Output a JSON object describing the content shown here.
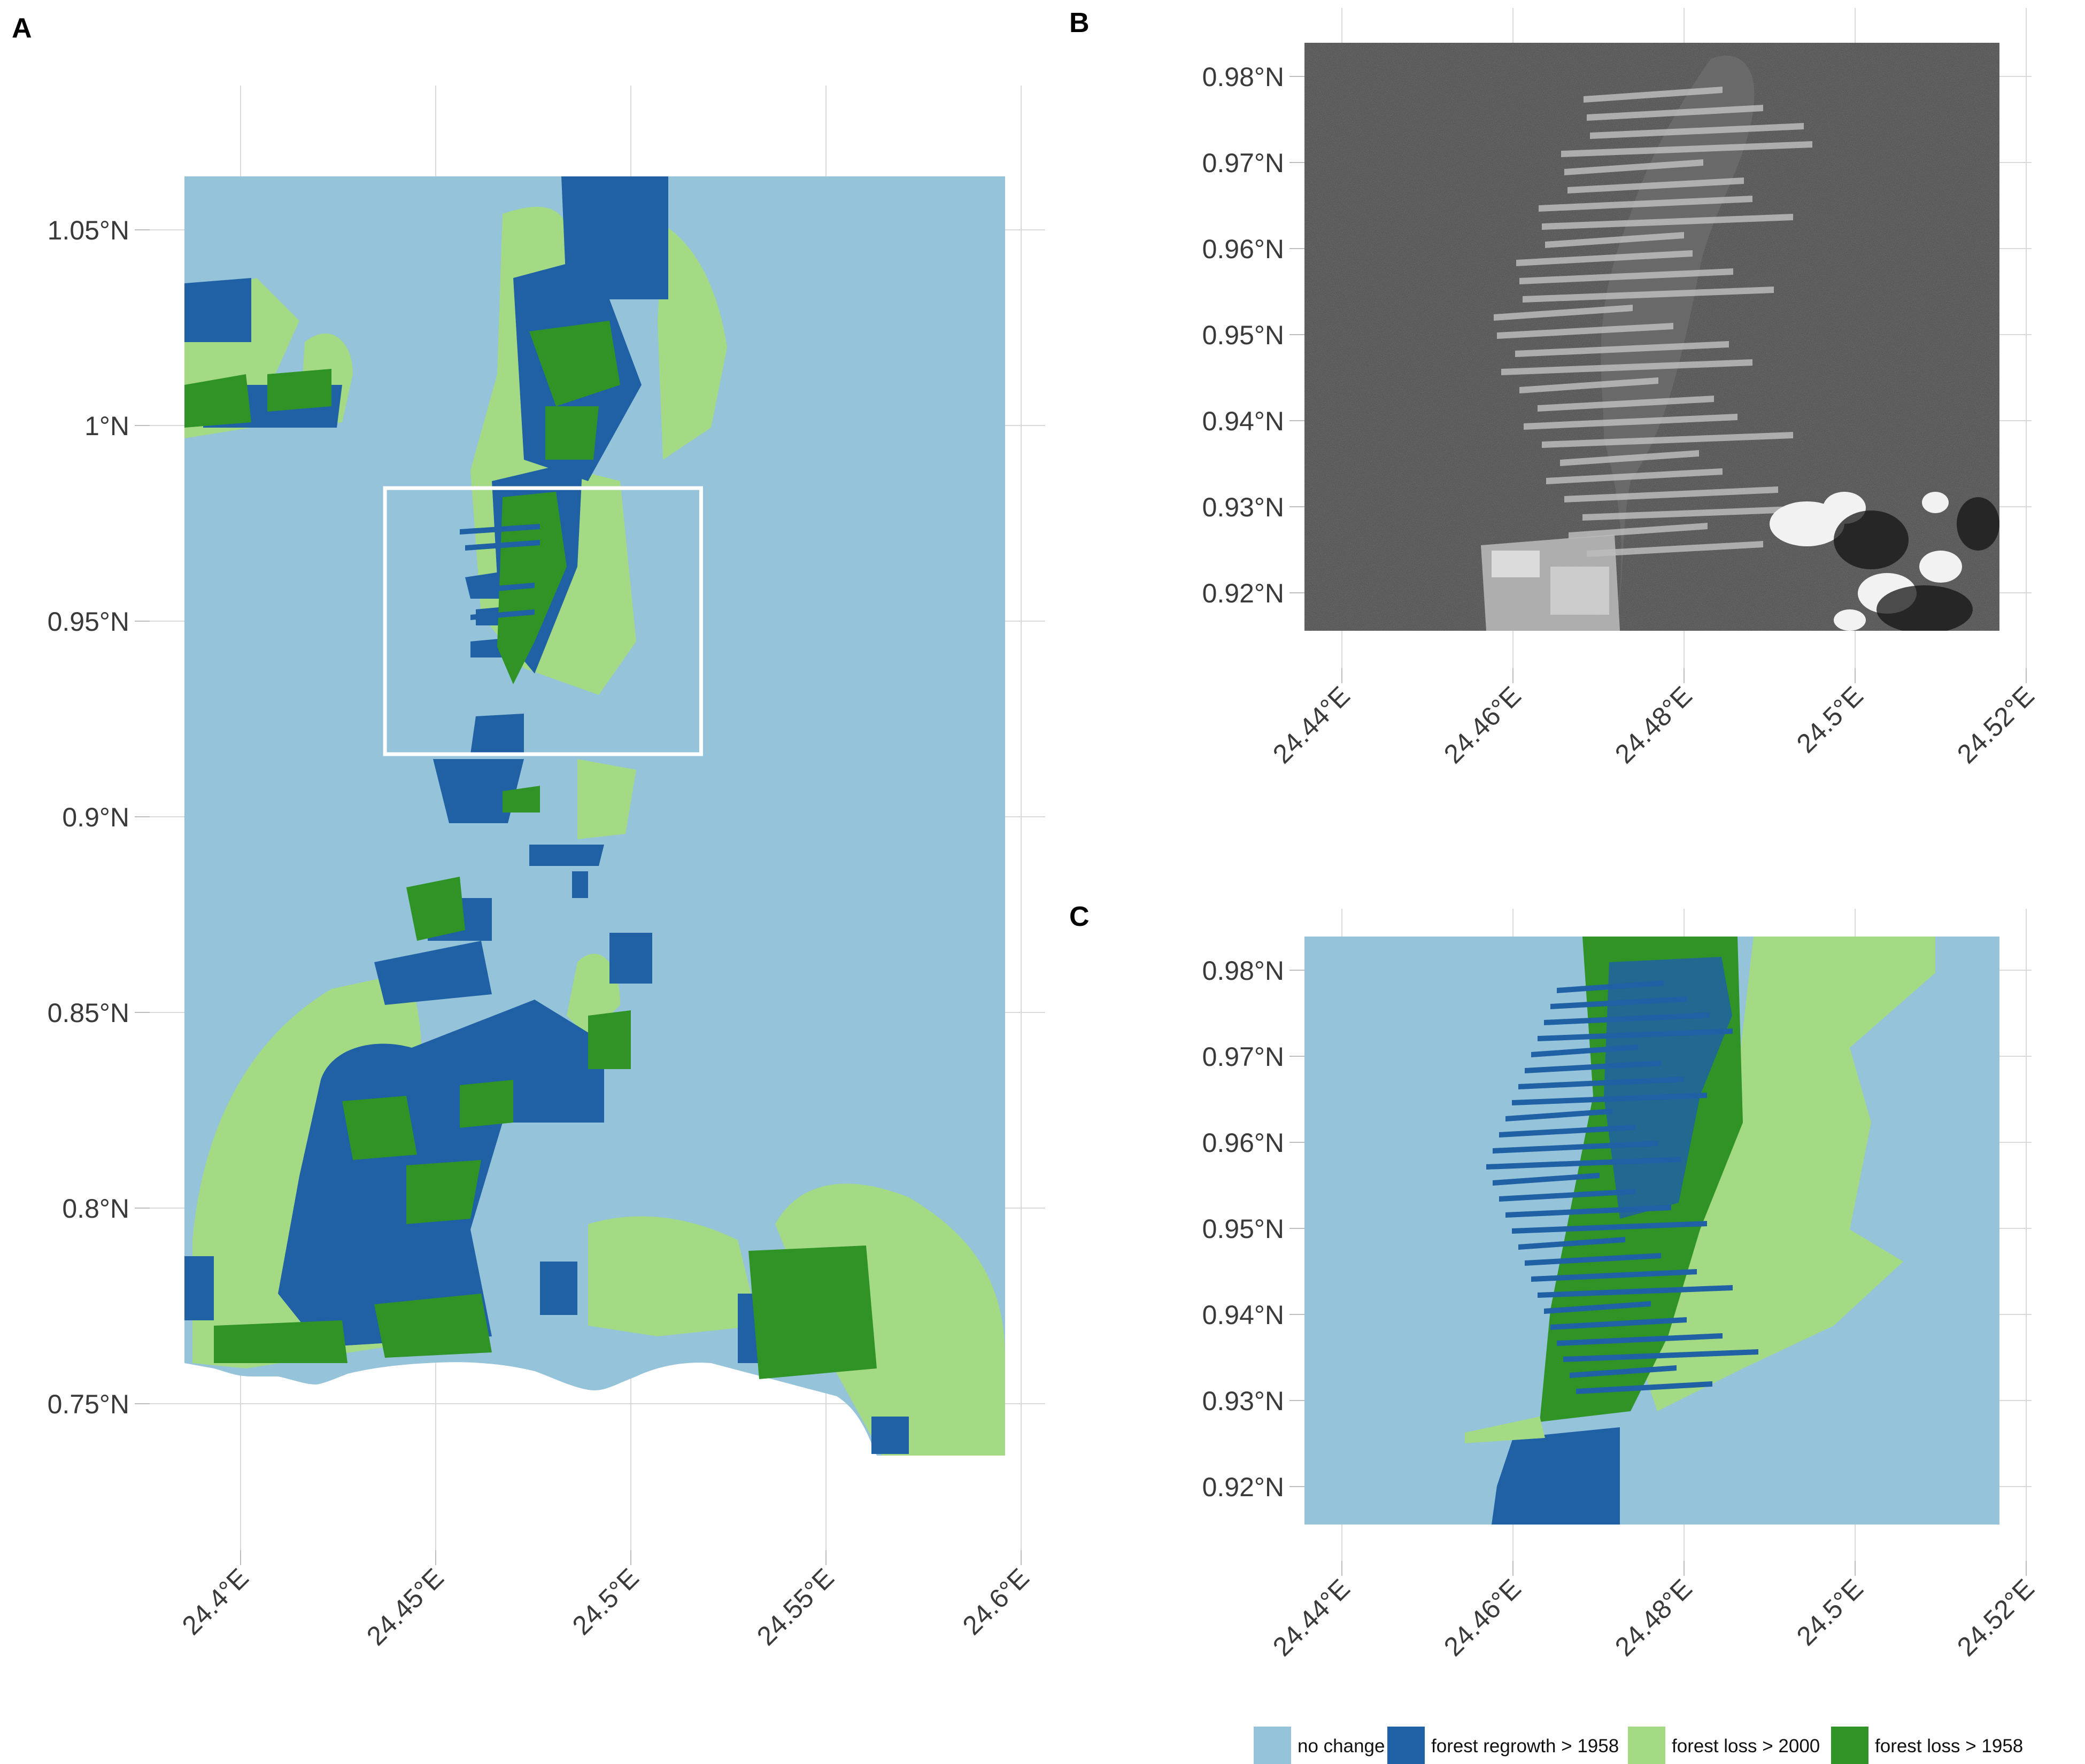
{
  "panels": [
    {
      "letter": "A",
      "x_ticks": [
        {
          "value": 24.4,
          "label": "24.4°E"
        },
        {
          "value": 24.45,
          "label": "24.45°E"
        },
        {
          "value": 24.5,
          "label": "24.5°E"
        },
        {
          "value": 24.55,
          "label": "24.55°E"
        },
        {
          "value": 24.6,
          "label": "24.6°E"
        }
      ],
      "y_ticks": [
        {
          "value": 1.05,
          "label": "1.05°N"
        },
        {
          "value": 1.0,
          "label": "1°N"
        },
        {
          "value": 0.95,
          "label": "0.95°N"
        },
        {
          "value": 0.9,
          "label": "0.9°N"
        },
        {
          "value": 0.85,
          "label": "0.85°N"
        },
        {
          "value": 0.8,
          "label": "0.8°N"
        },
        {
          "value": 0.75,
          "label": "0.75°N"
        }
      ],
      "inset_frame": {
        "lon": [
          24.437,
          24.518
        ],
        "lat": [
          0.916,
          0.984
        ]
      }
    },
    {
      "letter": "B",
      "x_ticks": [
        {
          "value": 24.44,
          "label": "24.44°E"
        },
        {
          "value": 24.46,
          "label": "24.46°E"
        },
        {
          "value": 24.48,
          "label": "24.48°E"
        },
        {
          "value": 24.5,
          "label": "24.5°E"
        },
        {
          "value": 24.52,
          "label": "24.52°E"
        }
      ],
      "y_ticks": [
        {
          "value": 0.98,
          "label": "0.98°N"
        },
        {
          "value": 0.97,
          "label": "0.97°N"
        },
        {
          "value": 0.96,
          "label": "0.96°N"
        },
        {
          "value": 0.95,
          "label": "0.95°N"
        },
        {
          "value": 0.94,
          "label": "0.94°N"
        },
        {
          "value": 0.93,
          "label": "0.93°N"
        },
        {
          "value": 0.92,
          "label": "0.92°N"
        }
      ]
    },
    {
      "letter": "C",
      "x_ticks": [
        {
          "value": 24.44,
          "label": "24.44°E"
        },
        {
          "value": 24.46,
          "label": "24.46°E"
        },
        {
          "value": 24.48,
          "label": "24.48°E"
        },
        {
          "value": 24.5,
          "label": "24.5°E"
        },
        {
          "value": 24.52,
          "label": "24.52°E"
        }
      ],
      "y_ticks": [
        {
          "value": 0.98,
          "label": "0.98°N"
        },
        {
          "value": 0.97,
          "label": "0.97°N"
        },
        {
          "value": 0.96,
          "label": "0.96°N"
        },
        {
          "value": 0.95,
          "label": "0.95°N"
        },
        {
          "value": 0.94,
          "label": "0.94°N"
        },
        {
          "value": 0.93,
          "label": "0.93°N"
        },
        {
          "value": 0.92,
          "label": "0.92°N"
        }
      ]
    }
  ],
  "legend": [
    {
      "label": "no change",
      "color": "#94c3da"
    },
    {
      "label": "forest regrowth > 1958",
      "color": "#1f61a4"
    },
    {
      "label": "forest loss > 2000",
      "color": "#a4da84"
    },
    {
      "label": "forest loss > 1958",
      "color": "#2f9326"
    }
  ],
  "imagery_colors": {
    "aerial_dark": "#4a4a4a",
    "aerial_light": "#c8c8c8"
  }
}
